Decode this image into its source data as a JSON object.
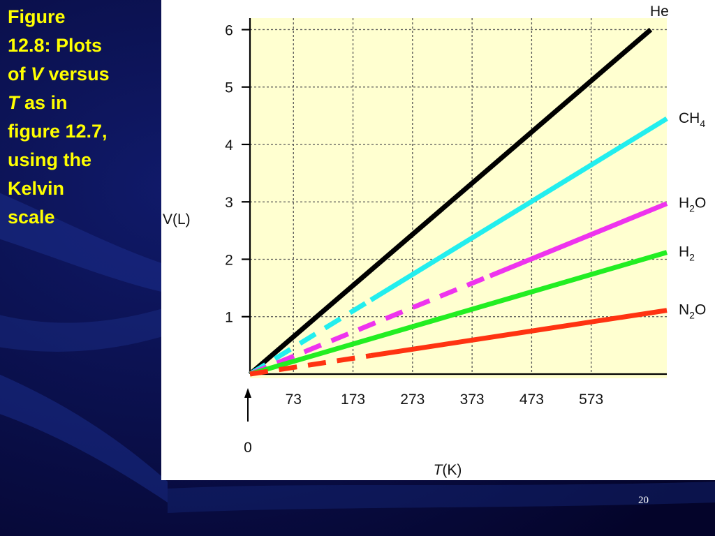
{
  "slide": {
    "caption": {
      "line1": "Figure",
      "line2": "12.8: Plots",
      "line3_prefix": "of ",
      "line3_italic": "V",
      "line3_suffix": " versus",
      "line4_italic": "T",
      "line4_suffix": " as in",
      "line5": "figure 12.7,",
      "line6": "using the",
      "line7": "Kelvin",
      "line8": "scale"
    },
    "page_number": "20",
    "colors": {
      "background": "#06063a",
      "caption": "#ffff00",
      "plot_area": "#ffffd0",
      "panel": "#ffffff"
    }
  },
  "chart_data": {
    "type": "line",
    "title": "",
    "ylabel": "V(L)",
    "xlabel_italic": "T",
    "xlabel_rest": "(K)",
    "x_ticks": [
      73,
      173,
      273,
      373,
      473,
      573
    ],
    "y_ticks": [
      1,
      2,
      3,
      4,
      5,
      6
    ],
    "xlim": [
      0,
      700
    ],
    "ylim": [
      0,
      6.2
    ],
    "origin_label": "0",
    "grid": true,
    "legend": "inline labels at right end of lines",
    "series": [
      {
        "name": "He",
        "label_main": "He",
        "label_sub": "",
        "label_tail": "",
        "color": "#000000",
        "x": [
          0,
          673
        ],
        "y": [
          0,
          6.0
        ],
        "dashed_to_x": 0
      },
      {
        "name": "CH4",
        "label_main": "CH",
        "label_sub": "4",
        "label_tail": "",
        "color": "#22eeee",
        "x": [
          0,
          700
        ],
        "y": [
          0,
          4.45
        ],
        "dashed_to_x": 203
      },
      {
        "name": "H2O",
        "label_main": "H",
        "label_sub": "2",
        "label_tail": "O",
        "color": "#ee33ee",
        "x": [
          0,
          700
        ],
        "y": [
          0,
          2.97
        ],
        "dashed_to_x": 403
      },
      {
        "name": "H2",
        "label_main": "H",
        "label_sub": "2",
        "label_tail": "",
        "color": "#22ee22",
        "x": [
          0,
          700
        ],
        "y": [
          0,
          2.12
        ],
        "dashed_to_x": 0
      },
      {
        "name": "N2O",
        "label_main": "N",
        "label_sub": "2",
        "label_tail": "O",
        "color": "#ff3311",
        "x": [
          0,
          700
        ],
        "y": [
          0,
          1.11
        ],
        "dashed_to_x": 203
      }
    ]
  }
}
